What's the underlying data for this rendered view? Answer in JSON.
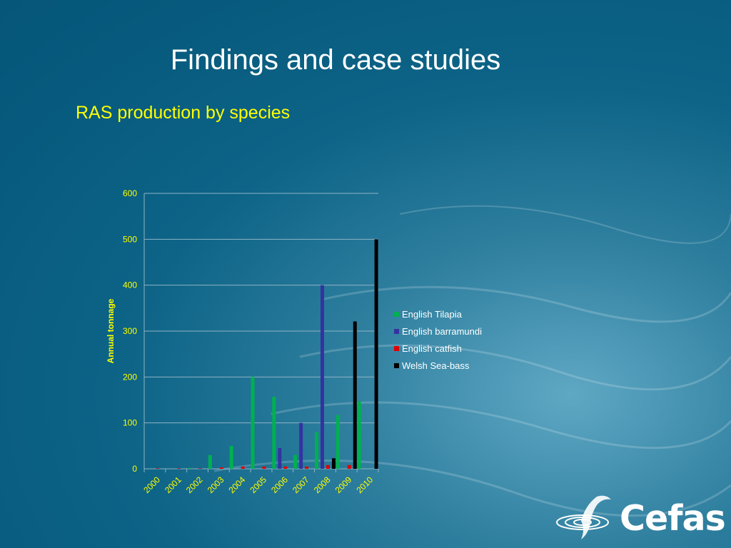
{
  "slide": {
    "title": "Findings and case studies",
    "subtitle": "RAS production by species",
    "logo_text": "Cefas"
  },
  "colors": {
    "axis_text": "#ffff00",
    "legend_text": "#ffffff",
    "grid": "#8fb3c4"
  },
  "chart_data": {
    "type": "bar",
    "categories": [
      "2000",
      "2001",
      "2002",
      "2003",
      "2004",
      "2005",
      "2006",
      "2007",
      "2008",
      "2009",
      "2010"
    ],
    "ylabel": "Annual tonnage",
    "ylim": [
      0,
      600
    ],
    "yticks": [
      0,
      100,
      200,
      300,
      400,
      500,
      600
    ],
    "grid": true,
    "legend_position": "right",
    "series": [
      {
        "name": "English Tilapia",
        "color": "#00b050",
        "values": [
          0,
          0,
          2,
          30,
          50,
          200,
          157,
          30,
          80,
          117,
          147
        ]
      },
      {
        "name": "English barramundi",
        "color": "#3333a0",
        "values": [
          0,
          0,
          0,
          0,
          0,
          0,
          45,
          100,
          400,
          0,
          0
        ]
      },
      {
        "name": "English catfish",
        "color": "#e00000",
        "values": [
          1,
          1,
          1,
          3,
          5,
          5,
          5,
          5,
          8,
          8,
          0
        ]
      },
      {
        "name": "Welsh Sea-bass",
        "color": "#000000",
        "values": [
          0,
          0,
          0,
          0,
          0,
          0,
          0,
          0,
          23,
          321,
          500
        ]
      }
    ]
  }
}
